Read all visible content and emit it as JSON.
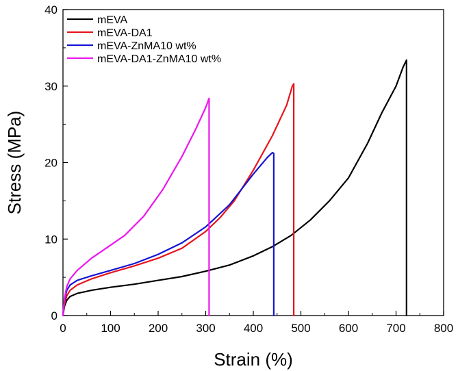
{
  "chart_data": {
    "type": "line",
    "title": "",
    "xlabel": "Strain (%)",
    "ylabel": "Stress (MPa)",
    "xlim": [
      0,
      800
    ],
    "ylim": [
      0,
      40
    ],
    "xticks": [
      0,
      100,
      200,
      300,
      400,
      500,
      600,
      700,
      800
    ],
    "yticks": [
      0,
      10,
      20,
      30,
      40
    ],
    "x_minor_step": 50,
    "y_minor_step": 5,
    "grid": false,
    "legend_position": "top-left",
    "series": [
      {
        "name": "mEVA",
        "color": "#000000",
        "points": [
          [
            0,
            0
          ],
          [
            3,
            1.2
          ],
          [
            8,
            2.0
          ],
          [
            15,
            2.5
          ],
          [
            30,
            2.9
          ],
          [
            60,
            3.3
          ],
          [
            100,
            3.7
          ],
          [
            150,
            4.1
          ],
          [
            200,
            4.6
          ],
          [
            250,
            5.1
          ],
          [
            300,
            5.8
          ],
          [
            350,
            6.6
          ],
          [
            400,
            7.8
          ],
          [
            440,
            9.0
          ],
          [
            480,
            10.5
          ],
          [
            520,
            12.5
          ],
          [
            560,
            15.0
          ],
          [
            600,
            18.0
          ],
          [
            640,
            22.5
          ],
          [
            670,
            26.5
          ],
          [
            700,
            30.0
          ],
          [
            715,
            32.5
          ],
          [
            722,
            33.4
          ],
          [
            722,
            0
          ]
        ]
      },
      {
        "name": "mEVA-DA1",
        "color": "#e8141c",
        "points": [
          [
            0,
            0
          ],
          [
            3,
            1.5
          ],
          [
            8,
            2.6
          ],
          [
            15,
            3.3
          ],
          [
            30,
            4.0
          ],
          [
            60,
            4.8
          ],
          [
            100,
            5.6
          ],
          [
            150,
            6.5
          ],
          [
            200,
            7.5
          ],
          [
            250,
            8.8
          ],
          [
            300,
            11.0
          ],
          [
            330,
            12.8
          ],
          [
            360,
            15.0
          ],
          [
            400,
            19.0
          ],
          [
            440,
            23.5
          ],
          [
            470,
            27.5
          ],
          [
            482,
            30.0
          ],
          [
            485,
            30.3
          ],
          [
            485,
            0
          ]
        ]
      },
      {
        "name": "mEVA-ZnMA10 wt%",
        "color": "#1414d4",
        "points": [
          [
            0,
            0
          ],
          [
            3,
            2.0
          ],
          [
            8,
            3.3
          ],
          [
            15,
            4.0
          ],
          [
            30,
            4.6
          ],
          [
            60,
            5.2
          ],
          [
            100,
            5.9
          ],
          [
            150,
            6.8
          ],
          [
            200,
            8.0
          ],
          [
            250,
            9.5
          ],
          [
            300,
            11.6
          ],
          [
            350,
            14.5
          ],
          [
            400,
            18.5
          ],
          [
            430,
            20.7
          ],
          [
            440,
            21.3
          ],
          [
            443,
            21.2
          ],
          [
            443,
            0
          ]
        ]
      },
      {
        "name": "mEVA-DA1-ZnMA10 wt%",
        "color": "#ee16ee",
        "points": [
          [
            0,
            0
          ],
          [
            3,
            2.2
          ],
          [
            8,
            3.8
          ],
          [
            15,
            4.8
          ],
          [
            30,
            5.9
          ],
          [
            60,
            7.5
          ],
          [
            100,
            9.2
          ],
          [
            130,
            10.5
          ],
          [
            170,
            13.0
          ],
          [
            210,
            16.5
          ],
          [
            250,
            20.8
          ],
          [
            280,
            24.5
          ],
          [
            300,
            27.2
          ],
          [
            307,
            28.4
          ],
          [
            307,
            0
          ]
        ]
      }
    ]
  }
}
